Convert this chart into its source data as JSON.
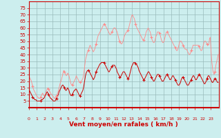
{
  "title": "",
  "xlabel": "Vent moyen/en rafales ( km/h )",
  "bg_color": "#cceeee",
  "grid_color": "#99bbbb",
  "axis_color": "#cc0000",
  "line_gust_color": "#ff8888",
  "line_avg_color": "#cc0000",
  "marker_gust_color": "#ff8888",
  "marker_avg_color": "#cc0000",
  "ylim": [
    0,
    80
  ],
  "yticks": [
    5,
    10,
    15,
    20,
    25,
    30,
    35,
    40,
    45,
    50,
    55,
    60,
    65,
    70,
    75
  ],
  "xtick_labels": [
    "0",
    "1",
    "2",
    "3",
    "4",
    "5",
    "6",
    "7",
    "8",
    "9",
    "10",
    "11",
    "12",
    "13",
    "14",
    "15",
    "16",
    "17",
    "18",
    "19",
    "20",
    "21",
    "22",
    "23"
  ],
  "n_hours": 24,
  "wind_gust": [
    24,
    23,
    22,
    21,
    20,
    18,
    16,
    14,
    13,
    12,
    11,
    10,
    9,
    8,
    8,
    7,
    7,
    7,
    8,
    9,
    10,
    11,
    10,
    9,
    9,
    10,
    11,
    13,
    14,
    15,
    14,
    13,
    12,
    11,
    10,
    10,
    9,
    8,
    8,
    7,
    7,
    8,
    9,
    10,
    11,
    13,
    15,
    17,
    19,
    20,
    22,
    24,
    26,
    28,
    27,
    26,
    25,
    24,
    25,
    26,
    25,
    24,
    22,
    20,
    18,
    17,
    17,
    18,
    19,
    20,
    21,
    22,
    24,
    23,
    22,
    21,
    20,
    19,
    19,
    19,
    20,
    21,
    22,
    24,
    28,
    32,
    36,
    38,
    40,
    42,
    43,
    44,
    46,
    47,
    46,
    45,
    44,
    43,
    42,
    43,
    44,
    46,
    48,
    50,
    52,
    54,
    55,
    56,
    57,
    58,
    59,
    60,
    61,
    62,
    63,
    63,
    62,
    61,
    60,
    59,
    58,
    57,
    56,
    55,
    55,
    56,
    57,
    58,
    59,
    60,
    60,
    60,
    59,
    58,
    57,
    55,
    53,
    51,
    50,
    49,
    48,
    48,
    49,
    50,
    52,
    54,
    55,
    56,
    57,
    57,
    58,
    59,
    61,
    63,
    65,
    67,
    69,
    70,
    69,
    68,
    67,
    65,
    63,
    61,
    60,
    59,
    58,
    57,
    56,
    55,
    54,
    53,
    52,
    51,
    51,
    52,
    53,
    55,
    57,
    58,
    59,
    60,
    59,
    58,
    57,
    55,
    53,
    51,
    50,
    49,
    49,
    50,
    52,
    54,
    55,
    57,
    57,
    57,
    56,
    55,
    53,
    51,
    50,
    49,
    49,
    50,
    52,
    54,
    56,
    57,
    57,
    56,
    55,
    54,
    53,
    52,
    51,
    50,
    49,
    48,
    47,
    46,
    45,
    44,
    43,
    43,
    44,
    46,
    48,
    50,
    50,
    50,
    49,
    48,
    47,
    46,
    45,
    44,
    44,
    44,
    43,
    42,
    41,
    40,
    40,
    41,
    43,
    44,
    45,
    47,
    47,
    47,
    47,
    47,
    47,
    47,
    47,
    47,
    46,
    45,
    44,
    43,
    43,
    44,
    46,
    48,
    50,
    50,
    50,
    49,
    48,
    47,
    47,
    48,
    52,
    53,
    45,
    37,
    32,
    28,
    26,
    25,
    27,
    30,
    33,
    35,
    37,
    40
  ],
  "wind_avg": [
    14,
    13,
    12,
    11,
    10,
    9,
    8,
    7,
    7,
    6,
    6,
    6,
    5,
    5,
    5,
    5,
    5,
    5,
    5,
    6,
    6,
    6,
    7,
    7,
    8,
    9,
    10,
    11,
    12,
    11,
    10,
    9,
    8,
    7,
    7,
    6,
    6,
    5,
    5,
    5,
    5,
    6,
    7,
    8,
    9,
    10,
    12,
    13,
    14,
    15,
    16,
    17,
    17,
    16,
    15,
    14,
    13,
    13,
    14,
    15,
    14,
    13,
    11,
    10,
    9,
    9,
    10,
    11,
    12,
    13,
    13,
    14,
    14,
    13,
    12,
    11,
    10,
    9,
    9,
    10,
    11,
    12,
    13,
    15,
    18,
    21,
    24,
    26,
    27,
    28,
    28,
    28,
    27,
    26,
    25,
    24,
    23,
    22,
    21,
    22,
    23,
    25,
    27,
    28,
    29,
    30,
    31,
    32,
    33,
    33,
    34,
    34,
    34,
    34,
    34,
    33,
    32,
    31,
    30,
    29,
    28,
    27,
    27,
    28,
    29,
    30,
    31,
    32,
    32,
    32,
    32,
    31,
    30,
    29,
    27,
    26,
    25,
    24,
    23,
    23,
    24,
    25,
    26,
    27,
    27,
    27,
    26,
    25,
    24,
    23,
    22,
    22,
    23,
    25,
    27,
    29,
    31,
    32,
    33,
    34,
    34,
    34,
    33,
    33,
    32,
    31,
    30,
    28,
    27,
    26,
    25,
    24,
    23,
    22,
    21,
    21,
    22,
    23,
    24,
    25,
    26,
    27,
    27,
    26,
    25,
    24,
    23,
    22,
    21,
    20,
    20,
    21,
    22,
    23,
    24,
    25,
    25,
    25,
    24,
    23,
    22,
    21,
    20,
    20,
    20,
    21,
    22,
    23,
    24,
    25,
    25,
    24,
    23,
    22,
    21,
    21,
    22,
    23,
    24,
    24,
    23,
    22,
    21,
    20,
    19,
    18,
    17,
    17,
    17,
    18,
    19,
    21,
    22,
    23,
    23,
    22,
    21,
    20,
    19,
    18,
    17,
    17,
    17,
    18,
    19,
    20,
    21,
    22,
    23,
    24,
    24,
    23,
    22,
    21,
    21,
    22,
    23,
    24,
    25,
    25,
    24,
    23,
    22,
    21,
    20,
    19,
    18,
    18,
    19,
    20,
    22,
    23,
    24,
    24,
    23,
    22,
    21,
    20,
    19,
    19,
    20,
    21,
    22,
    22,
    21,
    20,
    19,
    19
  ]
}
